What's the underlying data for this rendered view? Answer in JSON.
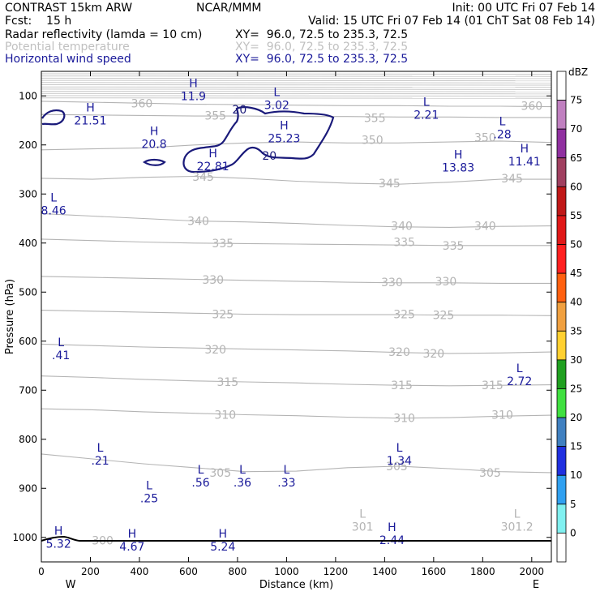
{
  "header": {
    "left1": "CONTRAST 15km ARW",
    "center1": "NCAR/MMM",
    "right1": "Init: 00 UTC Fri 07 Feb 14",
    "left2": "Fcst:    15 h",
    "right2": "Valid: 15 UTC Fri 07 Feb 14 (01 ChT Sat 08 Feb 14)",
    "field1": "Radar reflectivity (lamda = 10 cm)",
    "xy1": "XY=  96.0, 72.5 to 235.3, 72.5",
    "field2": "Potential temperature",
    "xy2": "XY=  96.0, 72.5 to 235.3, 72.5",
    "field3": "Horizontal wind speed",
    "xy3": "XY=  96.0, 72.5 to 235.3, 72.5"
  },
  "colors": {
    "theta": "#b4b4b4",
    "wind": "#1a1a7a",
    "text_blue": "#1a1a9a"
  },
  "chart_data": {
    "type": "cross-section",
    "xlabel": "Distance (km)",
    "ylabel": "Pressure (hPa)",
    "x_ticks": [
      0,
      200,
      400,
      600,
      800,
      1000,
      1200,
      1400,
      1600,
      1800,
      2000
    ],
    "y_ticks": [
      100,
      200,
      300,
      400,
      500,
      600,
      700,
      800,
      900,
      1000
    ],
    "xlim": [
      0,
      2080
    ],
    "ylim": [
      1050,
      50
    ],
    "x_end_labels": {
      "left": "W",
      "right": "E"
    },
    "theta_labels": [
      {
        "text": "360",
        "x": 410,
        "p": 115
      },
      {
        "text": "360",
        "x": 2000,
        "p": 120
      },
      {
        "text": "355",
        "x": 710,
        "p": 140
      },
      {
        "text": "355",
        "x": 1360,
        "p": 145
      },
      {
        "text": "350",
        "x": 1350,
        "p": 190
      },
      {
        "text": "350",
        "x": 1810,
        "p": 185
      },
      {
        "text": "345",
        "x": 660,
        "p": 265
      },
      {
        "text": "345",
        "x": 1420,
        "p": 278
      },
      {
        "text": "345",
        "x": 1920,
        "p": 268
      },
      {
        "text": "340",
        "x": 640,
        "p": 355
      },
      {
        "text": "340",
        "x": 1470,
        "p": 365
      },
      {
        "text": "340",
        "x": 1810,
        "p": 365
      },
      {
        "text": "335",
        "x": 740,
        "p": 400
      },
      {
        "text": "335",
        "x": 1480,
        "p": 398
      },
      {
        "text": "335",
        "x": 1680,
        "p": 405
      },
      {
        "text": "330",
        "x": 700,
        "p": 475
      },
      {
        "text": "330",
        "x": 1430,
        "p": 480
      },
      {
        "text": "330",
        "x": 1650,
        "p": 478
      },
      {
        "text": "325",
        "x": 740,
        "p": 545
      },
      {
        "text": "325",
        "x": 1480,
        "p": 545
      },
      {
        "text": "325",
        "x": 1640,
        "p": 547
      },
      {
        "text": "320",
        "x": 710,
        "p": 617
      },
      {
        "text": "320",
        "x": 1460,
        "p": 622
      },
      {
        "text": "320",
        "x": 1600,
        "p": 625
      },
      {
        "text": "315",
        "x": 760,
        "p": 683
      },
      {
        "text": "315",
        "x": 1470,
        "p": 690
      },
      {
        "text": "315",
        "x": 1840,
        "p": 690
      },
      {
        "text": "310",
        "x": 750,
        "p": 750
      },
      {
        "text": "310",
        "x": 1480,
        "p": 757
      },
      {
        "text": "310",
        "x": 1880,
        "p": 750
      },
      {
        "text": "305",
        "x": 730,
        "p": 868
      },
      {
        "text": "305",
        "x": 1450,
        "p": 855
      },
      {
        "text": "305",
        "x": 1830,
        "p": 868
      },
      {
        "text": "300",
        "x": 250,
        "p": 1006
      }
    ],
    "theta_isentropes": [
      {
        "theta": 360,
        "p": [
          111,
          113,
          115,
          117,
          118,
          119,
          120,
          120,
          121,
          121,
          122
        ]
      },
      {
        "theta": 355,
        "p": [
          138,
          139,
          140,
          141,
          141,
          142,
          142,
          143,
          143,
          144,
          144
        ]
      },
      {
        "theta": 350,
        "p": [
          210,
          208,
          206,
          200,
          196,
          194,
          196,
          196,
          194,
          192,
          195
        ]
      },
      {
        "theta": 345,
        "p": [
          268,
          270,
          266,
          264,
          268,
          274,
          278,
          280,
          276,
          270,
          270
        ]
      },
      {
        "theta": 340,
        "p": [
          340,
          345,
          350,
          355,
          357,
          360,
          364,
          367,
          368,
          366,
          365
        ]
      },
      {
        "theta": 335,
        "p": [
          392,
          395,
          398,
          400,
          401,
          402,
          403,
          404,
          405,
          405,
          405
        ]
      },
      {
        "theta": 330,
        "p": [
          468,
          470,
          472,
          474,
          476,
          478,
          480,
          481,
          481,
          482,
          482
        ]
      },
      {
        "theta": 325,
        "p": [
          537,
          539,
          541,
          543,
          545,
          546,
          546,
          546,
          547,
          547,
          548
        ]
      },
      {
        "theta": 320,
        "p": [
          606,
          609,
          612,
          614,
          616,
          618,
          620,
          623,
          625,
          624,
          622
        ]
      },
      {
        "theta": 315,
        "p": [
          671,
          674,
          678,
          681,
          683,
          685,
          688,
          690,
          691,
          690,
          689
        ]
      },
      {
        "theta": 310,
        "p": [
          738,
          740,
          744,
          747,
          750,
          752,
          755,
          757,
          756,
          753,
          751
        ]
      },
      {
        "theta": 305,
        "p": [
          830,
          840,
          850,
          858,
          866,
          865,
          858,
          855,
          860,
          866,
          868
        ]
      }
    ],
    "wind_contour_label": "20",
    "wind_contour_label_positions": [
      {
        "x": 808,
        "p": 128
      },
      {
        "x": 930,
        "p": 222
      }
    ],
    "extrema": [
      {
        "kind": "H",
        "value": "21.51",
        "x": 200,
        "p": 132,
        "style": "wind"
      },
      {
        "kind": "H",
        "value": "20.8",
        "x": 460,
        "p": 180,
        "style": "wind"
      },
      {
        "kind": "H",
        "value": "22.81",
        "x": 700,
        "p": 225,
        "style": "wind"
      },
      {
        "kind": "H",
        "value": "25.23",
        "x": 990,
        "p": 168,
        "style": "wind"
      },
      {
        "kind": "H",
        "value": "13.83",
        "x": 1700,
        "p": 228,
        "style": "wind"
      },
      {
        "kind": "H",
        "value": "11.41",
        "x": 1970,
        "p": 215,
        "style": "wind"
      },
      {
        "kind": "H",
        "value": "11.9",
        "x": 620,
        "p": 82,
        "style": "wind"
      },
      {
        "kind": "L",
        "value": "3.02",
        "x": 960,
        "p": 100,
        "style": "wind"
      },
      {
        "kind": "L",
        "value": "2.21",
        "x": 1570,
        "p": 120,
        "style": "wind"
      },
      {
        "kind": "L",
        "value": ".28",
        "x": 1880,
        "p": 160,
        "style": "wind"
      },
      {
        "kind": "L",
        "value": "8.46",
        "x": 50,
        "p": 315,
        "style": "wind"
      },
      {
        "kind": "L",
        "value": ".41",
        "x": 80,
        "p": 610,
        "style": "wind"
      },
      {
        "kind": "L",
        "value": "2.72",
        "x": 1950,
        "p": 663,
        "style": "wind"
      },
      {
        "kind": "L",
        "value": ".21",
        "x": 240,
        "p": 825,
        "style": "wind"
      },
      {
        "kind": "L",
        "value": "1.34",
        "x": 1460,
        "p": 825,
        "style": "wind"
      },
      {
        "kind": "L",
        "value": ".25",
        "x": 440,
        "p": 902,
        "style": "wind"
      },
      {
        "kind": "L",
        "value": ".56",
        "x": 650,
        "p": 870,
        "style": "wind"
      },
      {
        "kind": "L",
        "value": ".36",
        "x": 820,
        "p": 870,
        "style": "wind"
      },
      {
        "kind": "L",
        "value": ".33",
        "x": 1000,
        "p": 870,
        "style": "wind"
      },
      {
        "kind": "H",
        "value": "5.32",
        "x": 70,
        "p": 995,
        "style": "wind"
      },
      {
        "kind": "H",
        "value": "4.67",
        "x": 370,
        "p": 1000,
        "style": "wind"
      },
      {
        "kind": "H",
        "value": "5.24",
        "x": 740,
        "p": 1000,
        "style": "wind"
      },
      {
        "kind": "H",
        "value": "2.44",
        "x": 1430,
        "p": 987,
        "style": "wind"
      },
      {
        "kind": "L",
        "value": "301",
        "x": 1310,
        "p": 960,
        "style": "theta"
      },
      {
        "kind": "L",
        "value": "301.2",
        "x": 1940,
        "p": 960,
        "style": "theta"
      }
    ],
    "colorbar": {
      "label": "dBZ",
      "levels": [
        "75",
        "70",
        "65",
        "60",
        "55",
        "50",
        "45",
        "40",
        "35",
        "30",
        "25",
        "20",
        "15",
        "10",
        "5",
        "0"
      ],
      "colors": [
        "#ffffff",
        "#c080c0",
        "#9030a0",
        "#a04060",
        "#c01818",
        "#e01818",
        "#ff2020",
        "#ff6010",
        "#f0a040",
        "#ffd030",
        "#20a020",
        "#40e040",
        "#4080c0",
        "#2030e0",
        "#30a0f0",
        "#80f0f0",
        "#ffffff"
      ]
    }
  }
}
